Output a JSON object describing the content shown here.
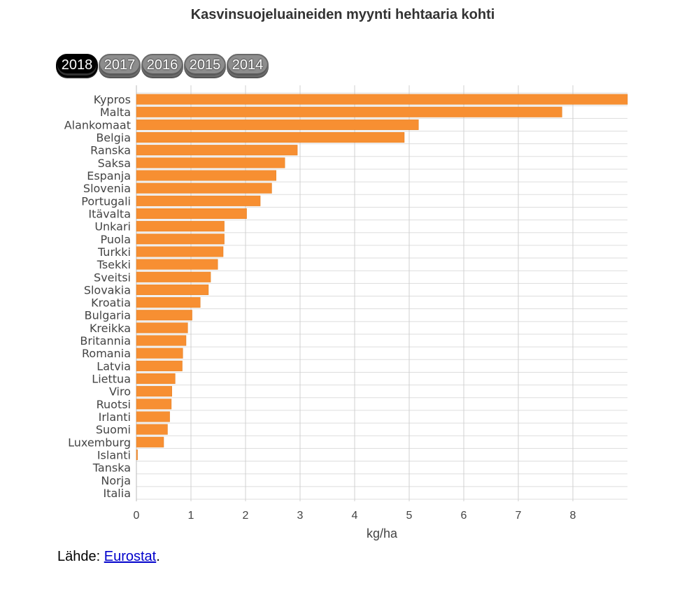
{
  "chart_data": {
    "type": "bar",
    "orientation": "horizontal",
    "title": "Kasvinsuojeluaineiden myynti hehtaaria kohti",
    "xlabel": "kg/ha",
    "ylabel": "",
    "xlim": [
      0,
      9
    ],
    "x_ticks": [
      "0",
      "1",
      "2",
      "3",
      "4",
      "5",
      "6",
      "7",
      "8"
    ],
    "grid": true,
    "bar_color": "#f78f32",
    "categories": [
      "Kypros",
      "Malta",
      "Alankomaat",
      "Belgia",
      "Ranska",
      "Saksa",
      "Espanja",
      "Slovenia",
      "Portugali",
      "Itävalta",
      "Unkari",
      "Puola",
      "Turkki",
      "Tsekki",
      "Sveitsi",
      "Slovakia",
      "Kroatia",
      "Bulgaria",
      "Kreikka",
      "Britannia",
      "Romania",
      "Latvia",
      "Liettua",
      "Viro",
      "Ruotsi",
      "Irlanti",
      "Suomi",
      "Luxemburg",
      "Islanti",
      "Tanska",
      "Norja",
      "Italia"
    ],
    "values": [
      9.0,
      7.8,
      5.17,
      4.91,
      2.95,
      2.72,
      2.56,
      2.48,
      2.27,
      2.02,
      1.61,
      1.61,
      1.59,
      1.49,
      1.36,
      1.32,
      1.17,
      1.02,
      0.94,
      0.91,
      0.85,
      0.84,
      0.71,
      0.65,
      0.64,
      0.61,
      0.57,
      0.5,
      0.02,
      0,
      0,
      0
    ]
  },
  "year_buttons": {
    "items": [
      "2018",
      "2017",
      "2016",
      "2015",
      "2014"
    ],
    "selected": "2018"
  },
  "source": {
    "prefix": "Lähde: ",
    "link_text": "Eurostat",
    "suffix": "."
  }
}
